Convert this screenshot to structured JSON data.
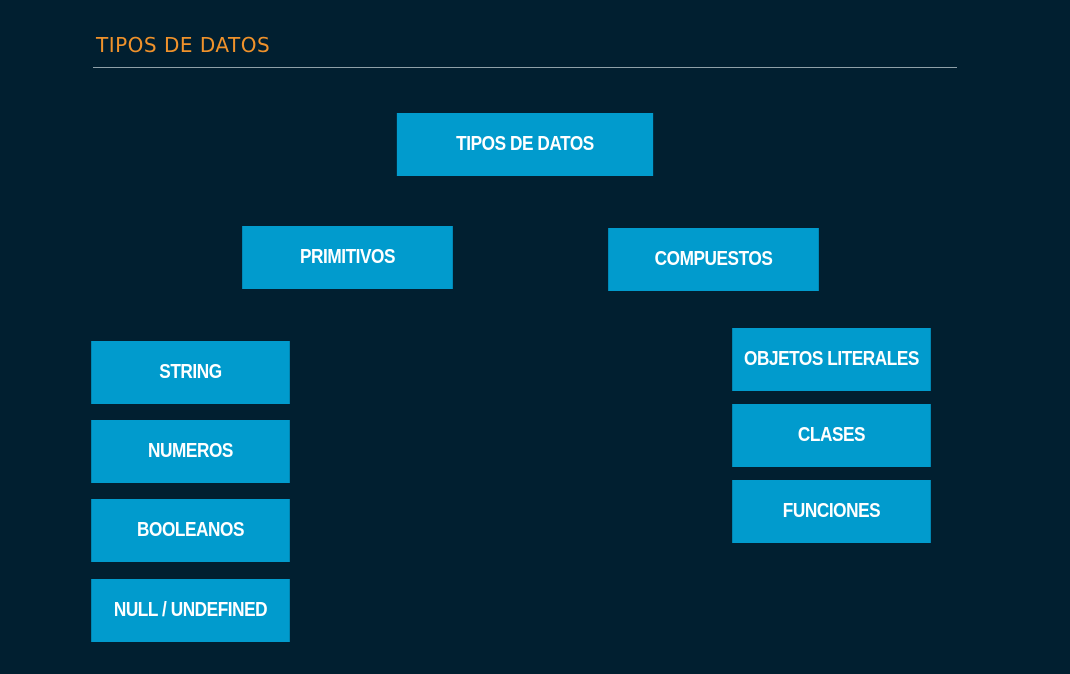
{
  "header": {
    "title": "TIPOS DE DATOS"
  },
  "diagram": {
    "root": {
      "label": "TIPOS DE DATOS"
    },
    "primitivos": {
      "label": "PRIMITIVOS",
      "children": [
        "STRING",
        "NUMEROS",
        "BOOLEANOS",
        "NULL / UNDEFINED"
      ]
    },
    "compuestos": {
      "label": "COMPUESTOS",
      "children": [
        "OBJETOS LITERALES",
        "CLASES",
        "FUNCIONES"
      ]
    }
  },
  "colors": {
    "background": "#011f30",
    "box": "#019bcd",
    "header_title": "#f0922b",
    "box_text": "#ffffff"
  }
}
